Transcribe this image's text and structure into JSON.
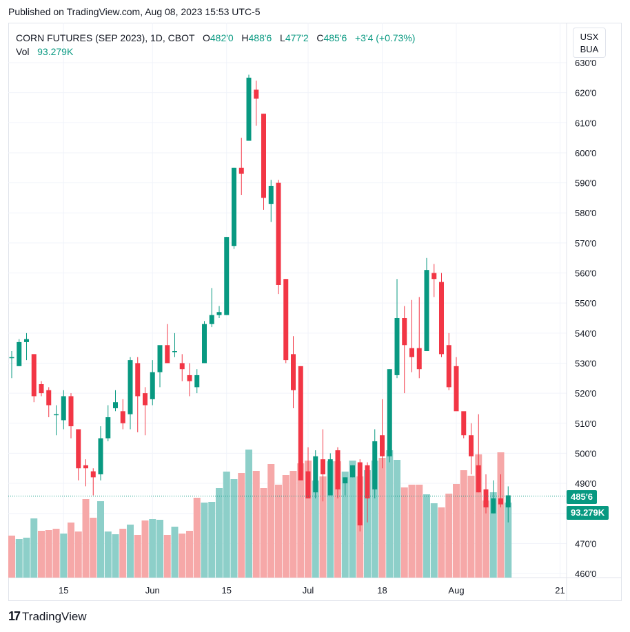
{
  "published": "Published on TradingView.com, Aug 08, 2023 15:53 UTC-5",
  "legend": {
    "symbol": "CORN FUTURES (SEP 2023), 1D, CBOT",
    "o_label": "O",
    "o_value": "482'0",
    "h_label": "H",
    "h_value": "488'6",
    "l_label": "L",
    "l_value": "477'2",
    "c_label": "C",
    "c_value": "485'6",
    "change": "+3'4 (+0.73%)",
    "vol_label": "Vol",
    "vol_value": "93.279K"
  },
  "currency": {
    "line1": "USX",
    "line2": "BUA"
  },
  "tags": {
    "price": "485'6",
    "volume": "93.279K"
  },
  "footer": {
    "brand": "TradingView"
  },
  "colors": {
    "up": "#089981",
    "down": "#f23645",
    "vol_up": "#8dcfc9",
    "vol_down": "#f6a8a8",
    "grid": "#f0f3fa"
  },
  "chart_data": {
    "type": "candlestick",
    "y_ticks": [
      "460'0",
      "470'0",
      "480'0",
      "490'0",
      "500'0",
      "510'0",
      "520'0",
      "530'0",
      "540'0",
      "550'0",
      "560'0",
      "570'0",
      "580'0",
      "590'0",
      "600'0",
      "610'0",
      "620'0",
      "630'0"
    ],
    "y_tick_values": [
      460,
      470,
      480,
      490,
      500,
      510,
      520,
      530,
      540,
      550,
      560,
      570,
      580,
      590,
      600,
      610,
      620,
      630
    ],
    "ylim": [
      456.5,
      631
    ],
    "x_labels": [
      {
        "label": "15",
        "index": 7
      },
      {
        "label": "Jun",
        "index": 19
      },
      {
        "label": "15",
        "index": 29
      },
      {
        "label": "Jul",
        "index": 40
      },
      {
        "label": "18",
        "index": 50
      },
      {
        "label": "Aug",
        "index": 60
      },
      {
        "label": "21",
        "index": 74
      }
    ],
    "bars": [
      [
        532,
        534,
        525,
        532
      ],
      [
        529,
        538,
        529,
        537
      ],
      [
        537,
        540,
        531,
        538
      ],
      [
        533,
        533,
        517,
        519
      ],
      [
        523,
        524,
        519,
        520
      ],
      [
        521,
        522,
        512,
        516
      ],
      [
        513,
        516,
        506,
        513
      ],
      [
        511,
        521,
        508,
        519
      ],
      [
        519,
        520,
        505,
        509
      ],
      [
        508,
        508,
        491,
        495
      ],
      [
        496,
        498,
        489,
        495
      ],
      [
        494,
        495,
        486,
        492
      ],
      [
        493,
        509,
        491,
        505
      ],
      [
        505,
        516,
        504,
        512
      ],
      [
        515,
        521,
        514,
        517
      ],
      [
        514,
        518,
        508,
        510
      ],
      [
        513,
        532,
        508,
        531
      ],
      [
        530,
        532,
        507,
        519
      ],
      [
        520,
        522,
        506,
        516
      ],
      [
        518,
        531,
        516,
        527
      ],
      [
        527,
        535,
        522,
        536
      ],
      [
        536,
        543,
        531,
        530
      ],
      [
        534,
        540,
        532,
        534
      ],
      [
        530,
        533,
        524,
        528
      ],
      [
        526,
        530,
        519,
        524
      ],
      [
        522,
        528,
        520,
        526
      ],
      [
        530,
        544,
        530,
        543
      ],
      [
        543,
        555,
        542,
        546
      ],
      [
        546,
        549,
        545,
        547
      ],
      [
        546,
        572,
        546,
        572
      ],
      [
        569,
        595,
        568,
        595
      ],
      [
        595,
        605,
        586,
        593
      ],
      [
        604,
        626,
        604,
        625
      ],
      [
        621,
        624,
        609,
        618
      ],
      [
        613,
        613,
        581,
        585
      ],
      [
        583,
        591,
        577,
        589
      ],
      [
        590,
        591,
        553,
        556
      ],
      [
        558,
        558,
        530,
        531
      ],
      [
        533,
        539,
        515,
        521
      ],
      [
        529,
        529,
        492,
        491
      ],
      [
        494,
        502,
        486,
        485
      ],
      [
        487,
        501,
        485,
        499
      ],
      [
        498,
        508,
        484,
        493
      ],
      [
        486,
        500,
        486,
        498
      ],
      [
        501,
        502,
        485,
        488
      ],
      [
        490,
        492,
        486,
        492
      ],
      [
        492,
        496,
        492,
        496
      ],
      [
        497,
        498,
        474,
        476
      ],
      [
        496,
        497,
        477,
        485
      ],
      [
        488,
        508,
        485,
        504
      ],
      [
        506,
        518,
        495,
        499
      ],
      [
        499,
        528,
        497,
        528
      ],
      [
        526,
        558,
        525,
        545
      ],
      [
        545,
        549,
        520,
        536
      ],
      [
        535,
        551,
        527,
        532
      ],
      [
        535,
        552,
        525,
        528
      ],
      [
        534,
        565,
        534,
        561
      ],
      [
        560,
        563,
        552,
        558
      ],
      [
        557,
        560,
        532,
        533
      ],
      [
        536,
        540,
        521,
        522
      ],
      [
        529,
        532,
        517,
        514
      ],
      [
        514,
        513,
        505,
        506
      ],
      [
        506,
        510,
        493,
        499
      ],
      [
        496,
        513,
        487,
        487
      ],
      [
        488,
        493,
        480,
        482
      ],
      [
        480,
        491,
        480,
        485
      ],
      [
        485,
        493,
        482,
        483
      ],
      [
        482,
        489,
        477,
        486
      ]
    ],
    "volume_heights": [
      61,
      56,
      58,
      86,
      68,
      69,
      71,
      64,
      80,
      67,
      114,
      87,
      111,
      67,
      63,
      71,
      77,
      62,
      83,
      85,
      84,
      62,
      74,
      64,
      68,
      116,
      109,
      110,
      130,
      154,
      143,
      152,
      186,
      155,
      130,
      165,
      135,
      149,
      155,
      166,
      170,
      141,
      147,
      169,
      169,
      154,
      170,
      147,
      156,
      170,
      174,
      185,
      171,
      131,
      135,
      135,
      121,
      108,
      102,
      122,
      136,
      156,
      148,
      179,
      112,
      124,
      182,
      109
    ],
    "volume_up": [
      false,
      true,
      true,
      true,
      false,
      false,
      false,
      true,
      false,
      false,
      false,
      false,
      true,
      true,
      true,
      false,
      true,
      false,
      false,
      true,
      true,
      false,
      true,
      false,
      false,
      false,
      true,
      true,
      true,
      true,
      true,
      false,
      true,
      false,
      false,
      false,
      false,
      false,
      false,
      false,
      false,
      true,
      false,
      true,
      false,
      true,
      true,
      false,
      true,
      true,
      false,
      true,
      true,
      false,
      false,
      false,
      true,
      true,
      false,
      false,
      false,
      false,
      false,
      false,
      false,
      true,
      false,
      true
    ],
    "last_price": 485.75,
    "last_volume": "93.279K"
  }
}
